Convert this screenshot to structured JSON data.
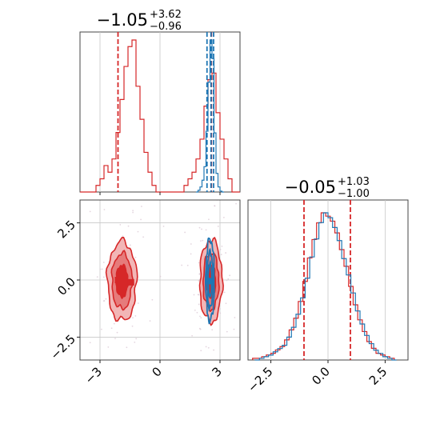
{
  "colors": {
    "red": "#d62728",
    "blue": "#1f77b4",
    "red_fill_outer": "#f2b6b6",
    "red_fill_mid": "#e67b7b",
    "red_fill_inner": "#d62728",
    "grid": "#c8c8c8"
  },
  "chart_data": [
    {
      "type": "histogram",
      "panel": "marginal-param-1",
      "title": {
        "value": "−1.05",
        "upper": "+3.62",
        "lower": "−0.96"
      },
      "xlim": [
        -4,
        4
      ],
      "grid_x": [
        -3,
        0,
        3
      ],
      "series": [
        {
          "color": "red",
          "bin_edges": [
            -4.0,
            -3.8,
            -3.6,
            -3.4,
            -3.2,
            -3.0,
            -2.8,
            -2.6,
            -2.4,
            -2.2,
            -2.0,
            -1.8,
            -1.6,
            -1.4,
            -1.2,
            -1.0,
            -0.8,
            -0.6,
            -0.4,
            -0.2,
            0.0,
            0.2,
            0.4,
            0.6,
            0.8,
            1.0,
            1.2,
            1.4,
            1.6,
            1.8,
            2.0,
            2.2,
            2.4,
            2.6,
            2.8,
            3.0,
            3.2,
            3.4,
            3.6,
            3.8,
            4.0
          ],
          "counts": [
            0,
            0,
            0,
            0,
            1,
            2,
            4,
            3,
            5,
            9,
            14,
            19,
            22,
            23,
            16,
            11,
            6,
            3,
            1,
            0,
            0,
            0,
            0,
            0,
            0,
            0,
            1,
            2,
            3,
            5,
            8,
            13,
            17,
            18,
            12,
            8,
            5,
            2,
            0,
            0
          ],
          "quantile_lines": [
            -2.1,
            2.57
          ]
        },
        {
          "color": "blue",
          "bin_edges": [
            1.8,
            1.9,
            2.0,
            2.1,
            2.2,
            2.3,
            2.4,
            2.5,
            2.6,
            2.7,
            2.8,
            2.9,
            3.0,
            3.1,
            3.2
          ],
          "counts": [
            0,
            2,
            6,
            14,
            30,
            72,
            130,
            180,
            158,
            70,
            22,
            6,
            1,
            0
          ],
          "quantile_lines": [
            2.35,
            2.55,
            2.68
          ]
        }
      ],
      "x_tick_labels_shown": false
    },
    {
      "type": "histogram",
      "panel": "marginal-param-2",
      "title": {
        "value": "−0.05",
        "upper": "+1.03",
        "lower": "−1.00"
      },
      "xlim": [
        -3.5,
        3.5
      ],
      "xticks": [
        -2.5,
        0.0,
        2.5
      ],
      "xtick_labels": [
        "−2.5",
        "0.0",
        "2.5"
      ],
      "series": [
        {
          "color": "red",
          "bin_edges": [
            -3.3,
            -3.1,
            -2.9,
            -2.7,
            -2.5,
            -2.3,
            -2.1,
            -1.9,
            -1.7,
            -1.5,
            -1.3,
            -1.1,
            -0.9,
            -0.7,
            -0.5,
            -0.3,
            -0.1,
            0.1,
            0.3,
            0.5,
            0.7,
            0.9,
            1.1,
            1.3,
            1.5,
            1.7,
            1.9,
            2.1,
            2.3,
            2.5,
            2.7,
            2.9
          ],
          "counts": [
            1,
            1,
            2,
            3,
            4,
            6,
            8,
            12,
            18,
            25,
            35,
            47,
            61,
            72,
            82,
            88,
            86,
            83,
            76,
            66,
            56,
            44,
            33,
            24,
            17,
            11,
            7,
            4,
            3,
            2,
            1
          ],
          "quantile_lines": [
            -1.05,
            0.98
          ]
        },
        {
          "color": "blue",
          "bin_edges": [
            -3.2,
            -3.0,
            -2.8,
            -2.6,
            -2.4,
            -2.2,
            -2.0,
            -1.8,
            -1.6,
            -1.4,
            -1.2,
            -1.0,
            -0.8,
            -0.6,
            -0.4,
            -0.2,
            0.0,
            0.2,
            0.4,
            0.6,
            0.8,
            1.0,
            1.2,
            1.4,
            1.6,
            1.8,
            2.0,
            2.2,
            2.4,
            2.6,
            2.8,
            3.0
          ],
          "counts": [
            0,
            1,
            2,
            3,
            5,
            7,
            9,
            14,
            20,
            28,
            38,
            50,
            63,
            74,
            84,
            90,
            87,
            81,
            73,
            62,
            52,
            41,
            30,
            22,
            15,
            10,
            6,
            4,
            2,
            1,
            0
          ],
          "quantile_lines": []
        }
      ],
      "x_tick_labels_shown": true
    },
    {
      "type": "scatter-contour",
      "panel": "joint-param-1-param-2",
      "xlim": [
        -4,
        4
      ],
      "ylim": [
        -3.5,
        3.5
      ],
      "xticks": [
        -3,
        0,
        3
      ],
      "xtick_labels": [
        "−3",
        "0",
        "3"
      ],
      "yticks": [
        -2.5,
        0.0,
        2.5
      ],
      "ytick_labels": [
        "−2.5",
        "0.0",
        "2.5"
      ],
      "modes": [
        {
          "color": "red",
          "cx": -1.9,
          "cy": -0.05,
          "sx": 0.65,
          "sy": 1.55,
          "levels": 3,
          "filled": true
        },
        {
          "color": "red",
          "cx": 2.55,
          "cy": -0.05,
          "sx": 0.5,
          "sy": 1.6,
          "levels": 3,
          "filled": true
        },
        {
          "color": "blue",
          "cx": 2.5,
          "cy": 0.0,
          "sx": 0.2,
          "sy": 1.7,
          "levels": 3,
          "filled": false
        }
      ],
      "markers": [
        {
          "color": "red",
          "x": -2.1,
          "y": 0.0
        },
        {
          "color": "red",
          "x": -1.45,
          "y": -0.1
        },
        {
          "color": "blue",
          "x": 2.45,
          "y": -0.05
        }
      ]
    }
  ]
}
